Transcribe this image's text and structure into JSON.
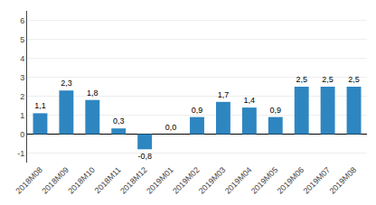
{
  "chart_data": {
    "type": "bar",
    "categories": [
      "2018M08",
      "2018M09",
      "2018M10",
      "2018M11",
      "2018M12",
      "2019M01",
      "2019M02",
      "2019M03",
      "2019M04",
      "2019M05",
      "2019M06",
      "2019M07",
      "2019M08"
    ],
    "values": [
      1.1,
      2.3,
      1.8,
      0.3,
      -0.8,
      0.0,
      0.9,
      1.7,
      1.4,
      0.9,
      2.5,
      2.5,
      2.5
    ],
    "value_labels": [
      "1,1",
      "2,3",
      "1,8",
      "0,3",
      "-0,8",
      "0,0",
      "0,9",
      "1,7",
      "1,4",
      "0,9",
      "2,5",
      "2,5",
      "2,5"
    ],
    "data_labels": true,
    "color": "#2E86C1",
    "ylim": [
      -1.5,
      6.5
    ],
    "yticks": [
      -1,
      0,
      1,
      2,
      3,
      4,
      5,
      6
    ],
    "grid": true
  }
}
